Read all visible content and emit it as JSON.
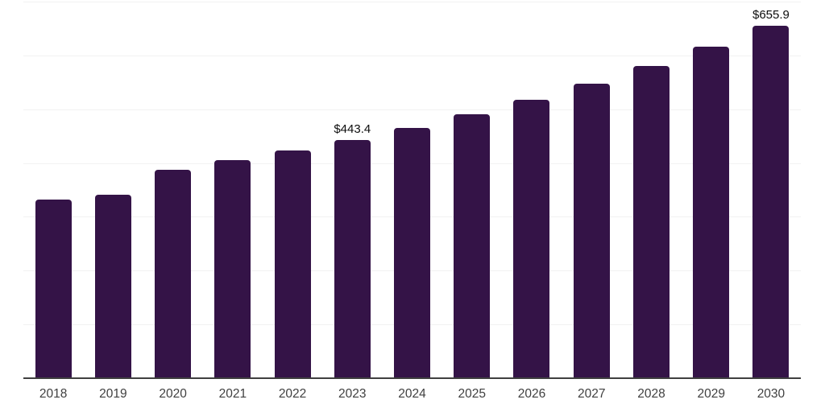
{
  "chart_data": {
    "type": "bar",
    "title": "",
    "xlabel": "",
    "ylabel": "",
    "categories": [
      "2018",
      "2019",
      "2020",
      "2021",
      "2022",
      "2023",
      "2024",
      "2025",
      "2026",
      "2027",
      "2028",
      "2029",
      "2030"
    ],
    "values": [
      331.6,
      341.6,
      387.9,
      404.7,
      423.7,
      443.4,
      465.0,
      490.8,
      517.2,
      547.9,
      580.3,
      616.6,
      655.9
    ],
    "data_labels": {
      "2023": "$443.4",
      "2030": "$655.9"
    },
    "ylim": [
      0,
      700
    ],
    "grid": "horizontal",
    "gridline_interval": 100,
    "legend": "none",
    "colors": {
      "bar": "#341347",
      "gridline": "#f2f2f2",
      "axis_line": "#404040",
      "tick_label": "#404040",
      "data_label": "#0d0d0d",
      "background": "#ffffff"
    }
  }
}
